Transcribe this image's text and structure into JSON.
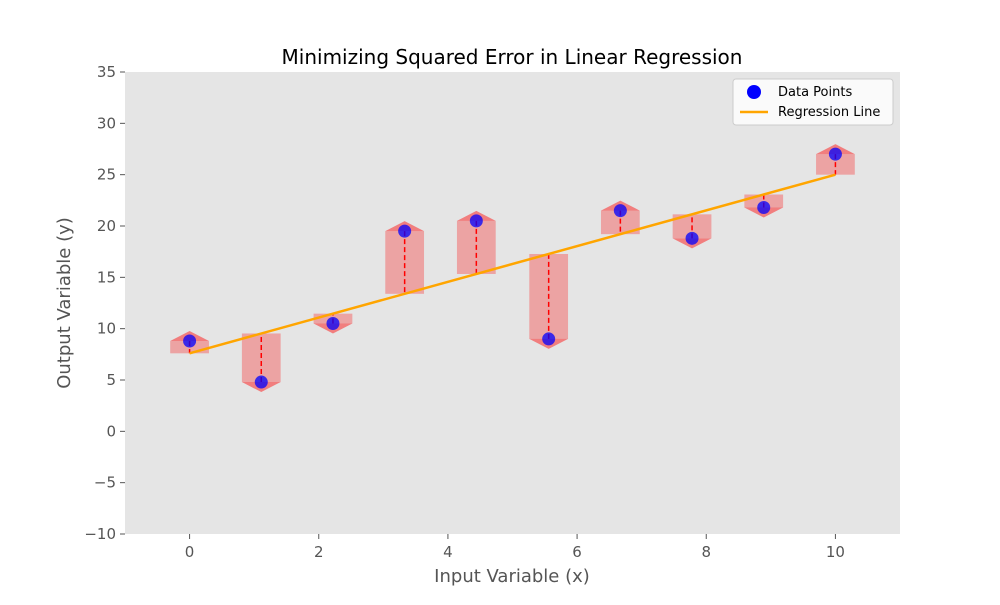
{
  "chart_data": {
    "type": "scatter",
    "title": "Minimizing Squared Error in Linear Regression",
    "xlabel": "Input Variable (x)",
    "ylabel": "Output Variable (y)",
    "xlim": [
      -1,
      11
    ],
    "ylim": [
      -10,
      35
    ],
    "xticks": [
      0,
      2,
      4,
      6,
      8,
      10
    ],
    "yticks": [
      -10,
      -5,
      0,
      5,
      10,
      15,
      20,
      25,
      30,
      35
    ],
    "grid": false,
    "legend_position": "top-right",
    "series": [
      {
        "name": "Data Points",
        "type": "scatter",
        "color": "#0000ff",
        "x": [
          0,
          1.11,
          2.22,
          3.33,
          4.44,
          5.56,
          6.67,
          7.78,
          8.89,
          10
        ],
        "y": [
          8.8,
          4.8,
          10.5,
          19.5,
          20.5,
          9.0,
          21.5,
          18.8,
          21.8,
          27.0
        ]
      },
      {
        "name": "Regression Line",
        "type": "line",
        "color": "#ffa500",
        "x": [
          0,
          10
        ],
        "y": [
          7.6,
          25.0
        ]
      }
    ],
    "residuals": {
      "line_color": "#ff0000",
      "square_color": "#f08080"
    },
    "background_color": "#e5e5e5"
  }
}
